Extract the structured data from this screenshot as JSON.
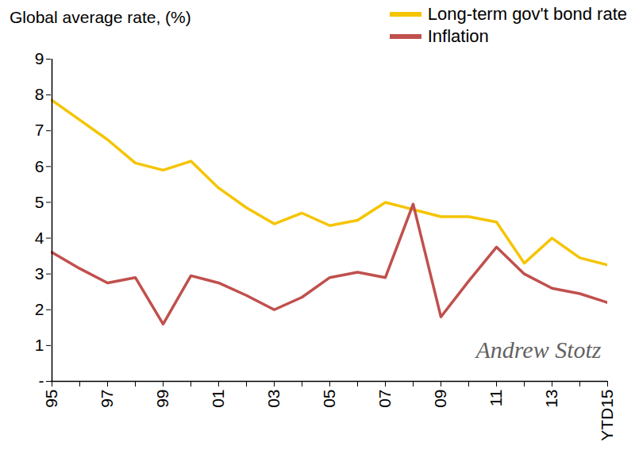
{
  "chart_data": {
    "type": "line",
    "title": "Global average rate, (%)",
    "categories": [
      "95",
      null,
      "97",
      null,
      "99",
      null,
      "01",
      null,
      "03",
      null,
      "05",
      null,
      "07",
      null,
      "09",
      null,
      "11",
      null,
      "13",
      null,
      "YTD15"
    ],
    "series": [
      {
        "name": "Long-term gov't bond rate",
        "color": "#f5c400",
        "marker": "none",
        "line_style": "solid",
        "values": [
          7.85,
          7.3,
          6.75,
          6.1,
          5.9,
          6.15,
          5.4,
          4.85,
          4.4,
          4.7,
          4.35,
          4.5,
          5.0,
          4.8,
          4.6,
          4.6,
          4.45,
          3.3,
          4.0,
          3.45,
          3.25
        ]
      },
      {
        "name": "Inflation",
        "color": "#c0504d",
        "marker": "none",
        "line_style": "solid",
        "values": [
          3.6,
          3.15,
          2.75,
          2.9,
          1.6,
          2.95,
          2.75,
          2.4,
          2.0,
          2.35,
          2.9,
          3.05,
          2.9,
          4.95,
          1.8,
          2.8,
          3.75,
          3.0,
          2.6,
          2.45,
          2.2
        ]
      }
    ],
    "ylim": [
      0,
      9
    ],
    "yticks": [
      {
        "value": 0,
        "label": "-"
      },
      1,
      2,
      3,
      4,
      5,
      6,
      7,
      8,
      9
    ],
    "grid": false,
    "legend": "top-right",
    "annotations": [
      {
        "text": "Andrew Stotz"
      }
    ]
  }
}
